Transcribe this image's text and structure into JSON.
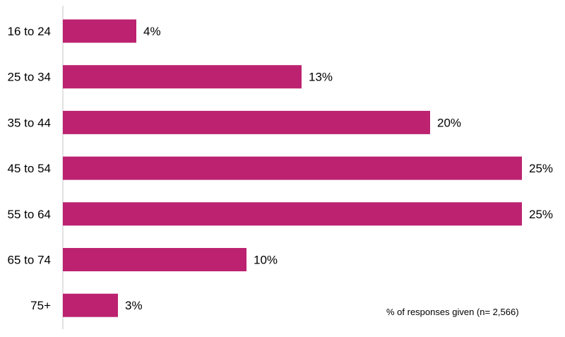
{
  "chart_data": {
    "type": "bar",
    "orientation": "horizontal",
    "categories": [
      "16 to 24",
      "25 to 34",
      "35 to 44",
      "45 to 54",
      "55 to 64",
      "65 to 74",
      "75+"
    ],
    "values": [
      4,
      13,
      20,
      25,
      25,
      10,
      3
    ],
    "value_labels": [
      "4%",
      "13%",
      "20%",
      "25%",
      "25%",
      "10%",
      "3%"
    ],
    "unit": "%",
    "xlim": [
      0,
      26
    ],
    "grid": false,
    "legend": "none",
    "bar_color": "#bc2270",
    "axis_color": "#d9d9d9",
    "annotation": "% of responses given (n= 2,566)"
  }
}
